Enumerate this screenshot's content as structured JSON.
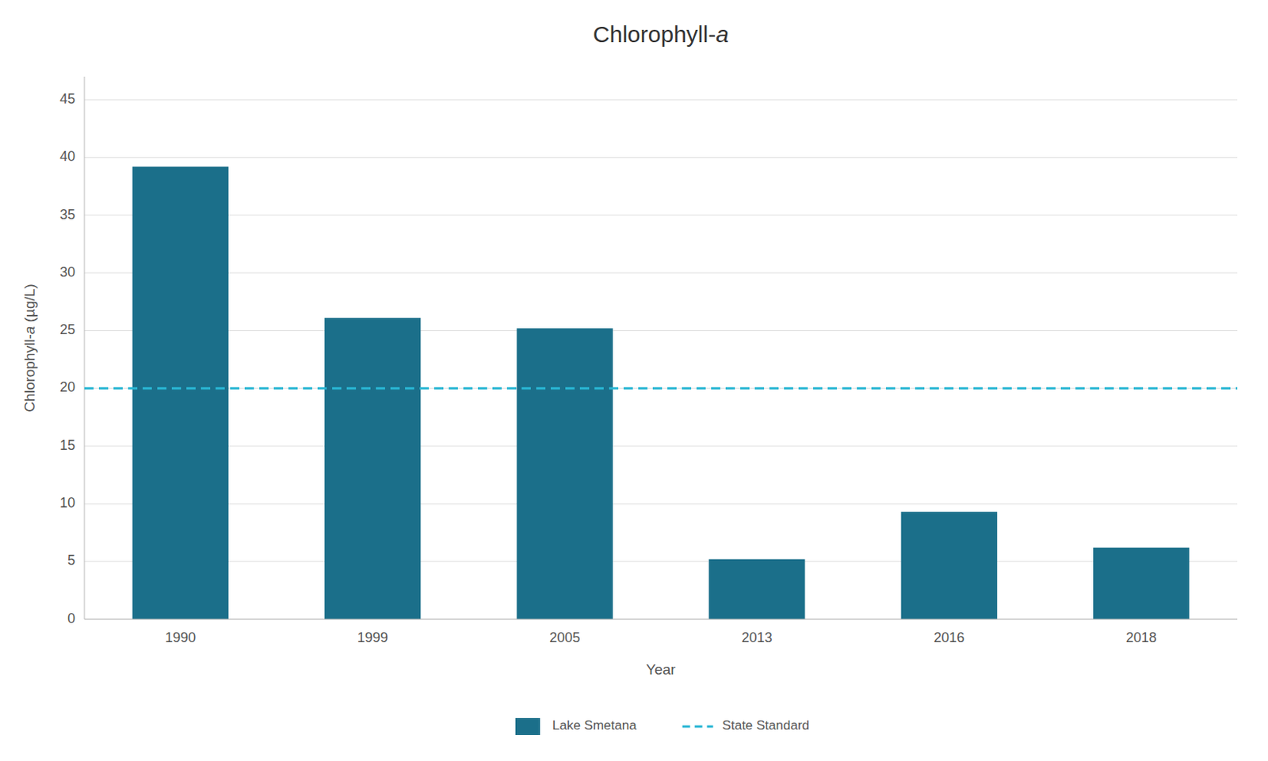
{
  "chart_data": {
    "type": "bar",
    "title": "Chlorophyll-a",
    "xlabel": "Year",
    "ylabel": "Chlorophyll-a (µg/L)",
    "categories": [
      "1990",
      "1999",
      "2005",
      "2013",
      "2016",
      "2018"
    ],
    "series": [
      {
        "name": "Lake Smetana",
        "color": "#1b6f8a",
        "values": [
          39.2,
          26.1,
          25.2,
          5.2,
          9.3,
          6.2
        ]
      },
      {
        "name": "State Standard",
        "type": "line",
        "line_style": "dashed",
        "color": "#29b6d4",
        "values": [
          20,
          20,
          20,
          20,
          20,
          20
        ]
      }
    ],
    "ylim": [
      0,
      47
    ],
    "yticks": [
      0,
      5,
      10,
      15,
      20,
      25,
      30,
      35,
      40,
      45
    ],
    "grid": true,
    "legend": "bottom"
  }
}
